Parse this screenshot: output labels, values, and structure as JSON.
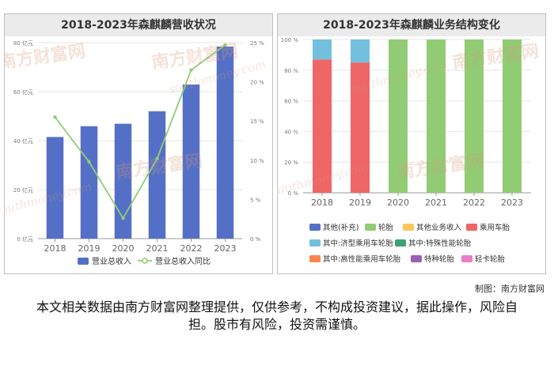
{
  "watermark": {
    "brand": "南方财富网",
    "domain": "southmoney.com"
  },
  "credit": "制图：南方财富网",
  "disclaimer": "本文相关数据由南方财富网整理提供，仅供参考，不构成投资建议，据此操作，风险自担。股市有风险，投资需谨慎。",
  "colors": {
    "revenue_bar": "#5470c6",
    "growth_line": "#91cc75",
    "other_supp": "#5470c6",
    "tire": "#91cc75",
    "other_biz": "#fac858",
    "passenger_tire": "#ee6666",
    "economy_tire": "#73c0de",
    "special_perf": "#3ba272",
    "high_perf": "#fc8452",
    "special_tire": "#9a60b4",
    "light_truck": "#ea7ccc"
  },
  "chart_data": [
    {
      "type": "bar",
      "title": "2018-2023年森麒麟营收状况",
      "categories": [
        "2018",
        "2019",
        "2020",
        "2021",
        "2022",
        "2023"
      ],
      "series": [
        {
          "name": "营业总收入",
          "type": "bar",
          "axis": "left",
          "values": [
            41.5,
            45.9,
            46.9,
            52.0,
            62.9,
            78.4
          ]
        },
        {
          "name": "营业总收入同比",
          "type": "line",
          "axis": "right",
          "values": [
            15.5,
            9.8,
            2.6,
            10.2,
            21.5,
            24.7
          ]
        }
      ],
      "y_left": {
        "min": 0,
        "max": 80,
        "ticks": [
          0,
          20,
          40,
          60,
          80
        ],
        "tick_labels": [
          "0 亿元",
          "20 亿元",
          "40 亿元",
          "60 亿元",
          "80 亿元"
        ]
      },
      "y_right": {
        "min": 0,
        "max": 25,
        "ticks": [
          0,
          5,
          10,
          15,
          20,
          25
        ],
        "tick_labels": [
          "0 %",
          "5 %",
          "10 %",
          "15 %",
          "20 %",
          "25 %"
        ]
      },
      "legend": [
        "营业总收入",
        "营业总收入同比"
      ],
      "legend_position": "bottom"
    },
    {
      "type": "bar",
      "stacked": true,
      "title": "2018-2023年森麒麟业务结构变化",
      "categories": [
        "2018",
        "2019",
        "2020",
        "2021",
        "2022",
        "2023"
      ],
      "y": {
        "min": 0,
        "max": 100,
        "ticks": [
          0,
          20,
          40,
          60,
          80,
          100
        ],
        "tick_labels": [
          "0 %",
          "20 %",
          "40 %",
          "60 %",
          "80 %",
          "100 %"
        ]
      },
      "series": [
        {
          "name": "乘用车胎",
          "color_key": "passenger_tire",
          "values": [
            87,
            85,
            0,
            0,
            0,
            0
          ]
        },
        {
          "name": "其中:济型乘用车轮胎",
          "color_key": "economy_tire",
          "values": [
            13,
            15,
            0,
            0,
            0,
            0
          ]
        },
        {
          "name": "轮胎",
          "color_key": "tire",
          "values": [
            0,
            0,
            100,
            100,
            100,
            100
          ]
        }
      ],
      "legend": [
        {
          "name": "其他(补充)",
          "color_key": "other_supp"
        },
        {
          "name": "轮胎",
          "color_key": "tire"
        },
        {
          "name": "其他业务收入",
          "color_key": "other_biz"
        },
        {
          "name": "乘用车胎",
          "color_key": "passenger_tire"
        },
        {
          "name": "其中:济型乘用车轮胎",
          "color_key": "economy_tire"
        },
        {
          "name": "其中:特殊性能轮胎",
          "color_key": "special_perf"
        },
        {
          "name": "其中:高性能乘用车轮胎",
          "color_key": "high_perf"
        },
        {
          "name": "特种轮胎",
          "color_key": "special_tire"
        },
        {
          "name": "轻卡轮胎",
          "color_key": "light_truck"
        }
      ],
      "legend_position": "bottom"
    }
  ]
}
